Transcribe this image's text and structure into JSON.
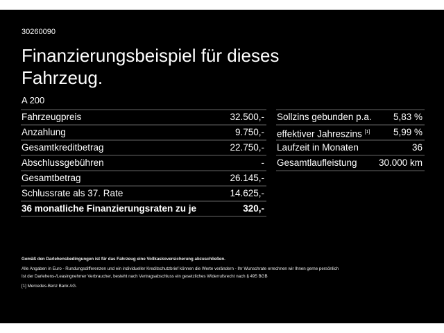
{
  "id": "30260090",
  "title": "Finanzierungsbeispiel für dieses Fahrzeug.",
  "model": "A 200",
  "left_rows": [
    {
      "label": "Fahrzeugpreis",
      "value": "32.500,-"
    },
    {
      "label": "Anzahlung",
      "value": "9.750,-"
    },
    {
      "label": "Gesamtkreditbetrag",
      "value": "22.750,-"
    },
    {
      "label": "Abschlussgebühren",
      "value": "-"
    },
    {
      "label": "Gesamtbetrag",
      "value": "26.145,-"
    },
    {
      "label": "Schlussrate als 37. Rate",
      "value": "14.625,-"
    },
    {
      "label": "36 monatliche Finanzierungsraten zu je",
      "value": "320,-"
    }
  ],
  "right_rows": [
    {
      "label": "Sollzins gebunden p.a.",
      "value": "5,83 %"
    },
    {
      "label": "effektiver Jahreszins",
      "sup": "[1]",
      "value": "5,99 %"
    },
    {
      "label": "Laufzeit in Monaten",
      "value": "36"
    },
    {
      "label": "Gesamtlaufleistung",
      "value": "30.000 km"
    }
  ],
  "footer": {
    "insurance": "Gemäß den Darlehensbedingungen ist für das Fahrzeug eine Vollkaskoversicherung abzuschließen.",
    "line1": "Alle Angaben in Euro - Rundungsdifferenzen und ein individueller Kreditschutzbrief können die Werte verändern - Ihr Wunschrate errechnen wir Ihnen gerne persönlich",
    "line2": "Ist der Darlehens-/Leasingnehmer Verbraucher, besteht nach Vertragsabschluss ein gesetzliches Widerrufsrecht nach § 495 BGB",
    "note_mark": "[1]",
    "note": "Mercedes-Benz Bank AG."
  }
}
